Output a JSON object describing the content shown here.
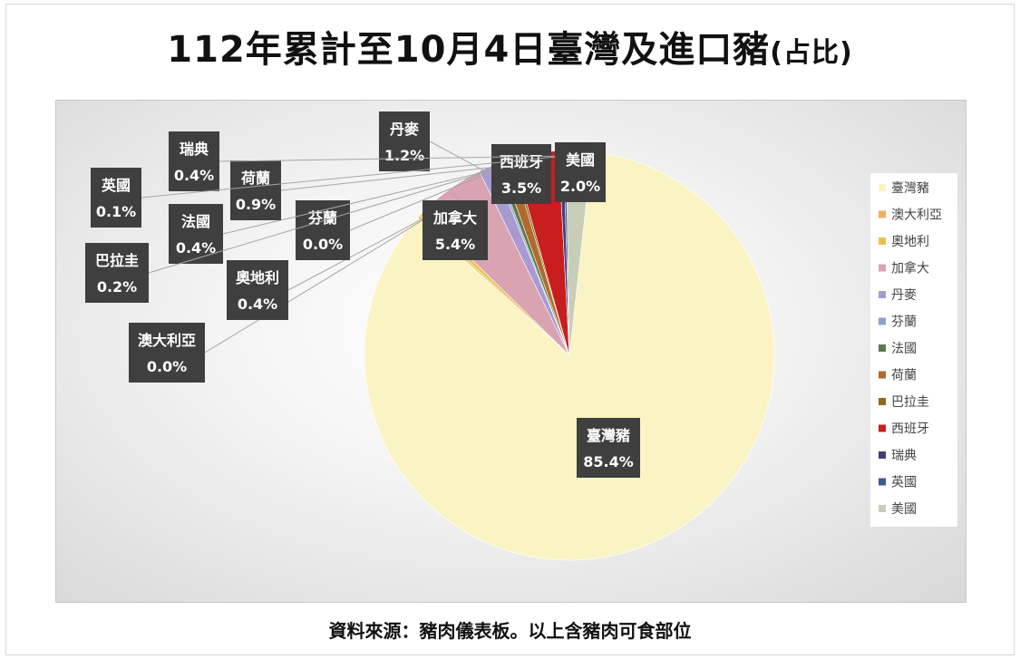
{
  "title": {
    "main": "112年累計至10月4日臺灣及進口豬",
    "paren": "(占比)"
  },
  "source": "資料來源：豬肉儀表板。以上含豬肉可食部位",
  "chart_data": {
    "type": "pie",
    "legend_position": "right",
    "slices": [
      {
        "name": "臺灣豬",
        "value": 85.4,
        "label": "85.4%",
        "color": "#faf4c4"
      },
      {
        "name": "澳大利亞",
        "value": 0.0,
        "label": "0.0%",
        "color": "#ecb067"
      },
      {
        "name": "奧地利",
        "value": 0.4,
        "label": "0.4%",
        "color": "#e6c44b"
      },
      {
        "name": "加拿大",
        "value": 5.4,
        "label": "5.4%",
        "color": "#d9a3b2"
      },
      {
        "name": "丹麥",
        "value": 1.2,
        "label": "1.2%",
        "color": "#a89ad1"
      },
      {
        "name": "芬蘭",
        "value": 0.0,
        "label": "0.0%",
        "color": "#8aa4c7"
      },
      {
        "name": "法國",
        "value": 0.4,
        "label": "0.4%",
        "color": "#5a7a4a"
      },
      {
        "name": "荷蘭",
        "value": 0.9,
        "label": "0.9%",
        "color": "#b06a2c"
      },
      {
        "name": "巴拉圭",
        "value": 0.2,
        "label": "0.2%",
        "color": "#8c6a1c"
      },
      {
        "name": "西班牙",
        "value": 3.5,
        "label": "3.5%",
        "color": "#c81e1e"
      },
      {
        "name": "瑞典",
        "value": 0.4,
        "label": "0.4%",
        "color": "#4b3a7a"
      },
      {
        "name": "英國",
        "value": 0.1,
        "label": "0.1%",
        "color": "#3c5a8c"
      },
      {
        "name": "美國",
        "value": 2.0,
        "label": "2.0%",
        "color": "#c6ceb8"
      }
    ]
  }
}
